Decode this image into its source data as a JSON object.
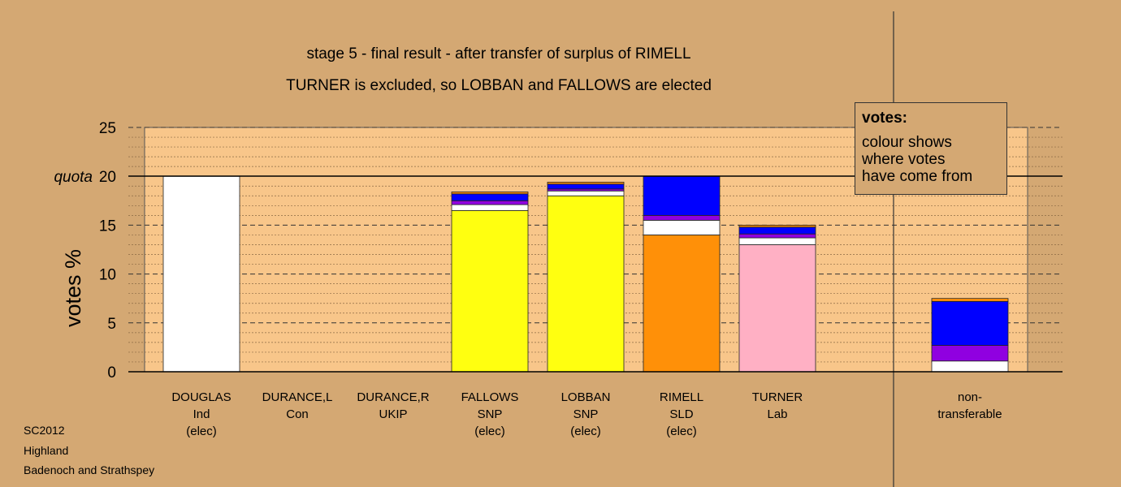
{
  "title_line1": "stage 5 - final result - after transfer of surplus of RIMELL",
  "title_line2": "TURNER is excluded, so LOBBAN and FALLOWS are elected",
  "legend": {
    "title": "votes:",
    "lines": [
      "colour shows",
      "where votes",
      "have come from"
    ]
  },
  "footer": [
    "SC2012",
    "Highland",
    "Badenoch and Strathspey"
  ],
  "colors": {
    "background": "#d4a873",
    "plot_background": "#f8c68a",
    "Ind": "#ffffff",
    "SNP": "#ffff10",
    "SLD": "#ff9008",
    "Lab": "#ffb0c4",
    "Con": "#0000ff",
    "UKIP": "#9000e0"
  },
  "chart_data": {
    "type": "bar",
    "stacked": true,
    "ylabel": "votes %",
    "ylim": [
      0,
      25
    ],
    "yticks": [
      0,
      5,
      10,
      15,
      20,
      25
    ],
    "quota": {
      "label": "quota",
      "value": 20
    },
    "grid": true,
    "categories": [
      {
        "name": "DOUGLAS",
        "party": "Ind",
        "status": "(elec)"
      },
      {
        "name": "DURANCE,L",
        "party": "Con",
        "status": ""
      },
      {
        "name": "DURANCE,R",
        "party": "UKIP",
        "status": ""
      },
      {
        "name": "FALLOWS",
        "party": "SNP",
        "status": "(elec)"
      },
      {
        "name": "LOBBAN",
        "party": "SNP",
        "status": "(elec)"
      },
      {
        "name": "RIMELL",
        "party": "SLD",
        "status": "(elec)"
      },
      {
        "name": "TURNER",
        "party": "Lab",
        "status": ""
      },
      {
        "name": "non-",
        "party": "transferable",
        "status": ""
      }
    ],
    "stacks": [
      [
        {
          "from": "Ind",
          "value": 20.0
        }
      ],
      [],
      [],
      [
        {
          "from": "SNP",
          "value": 16.5
        },
        {
          "from": "Ind",
          "value": 0.6
        },
        {
          "from": "UKIP",
          "value": 0.4
        },
        {
          "from": "Con",
          "value": 0.7
        },
        {
          "from": "SLD",
          "value": 0.2
        }
      ],
      [
        {
          "from": "SNP",
          "value": 18.0
        },
        {
          "from": "Ind",
          "value": 0.5
        },
        {
          "from": "UKIP",
          "value": 0.2
        },
        {
          "from": "Con",
          "value": 0.5
        },
        {
          "from": "SLD",
          "value": 0.2
        }
      ],
      [
        {
          "from": "SLD",
          "value": 14.0
        },
        {
          "from": "Ind",
          "value": 1.5
        },
        {
          "from": "UKIP",
          "value": 0.5
        },
        {
          "from": "Con",
          "value": 4.0
        }
      ],
      [
        {
          "from": "Lab",
          "value": 13.0
        },
        {
          "from": "Ind",
          "value": 0.7
        },
        {
          "from": "UKIP",
          "value": 0.4
        },
        {
          "from": "Con",
          "value": 0.7
        },
        {
          "from": "SLD",
          "value": 0.2
        }
      ],
      [
        {
          "from": "Ind",
          "value": 1.1
        },
        {
          "from": "UKIP",
          "value": 1.6
        },
        {
          "from": "Con",
          "value": 4.5
        },
        {
          "from": "SLD",
          "value": 0.3
        }
      ]
    ]
  }
}
